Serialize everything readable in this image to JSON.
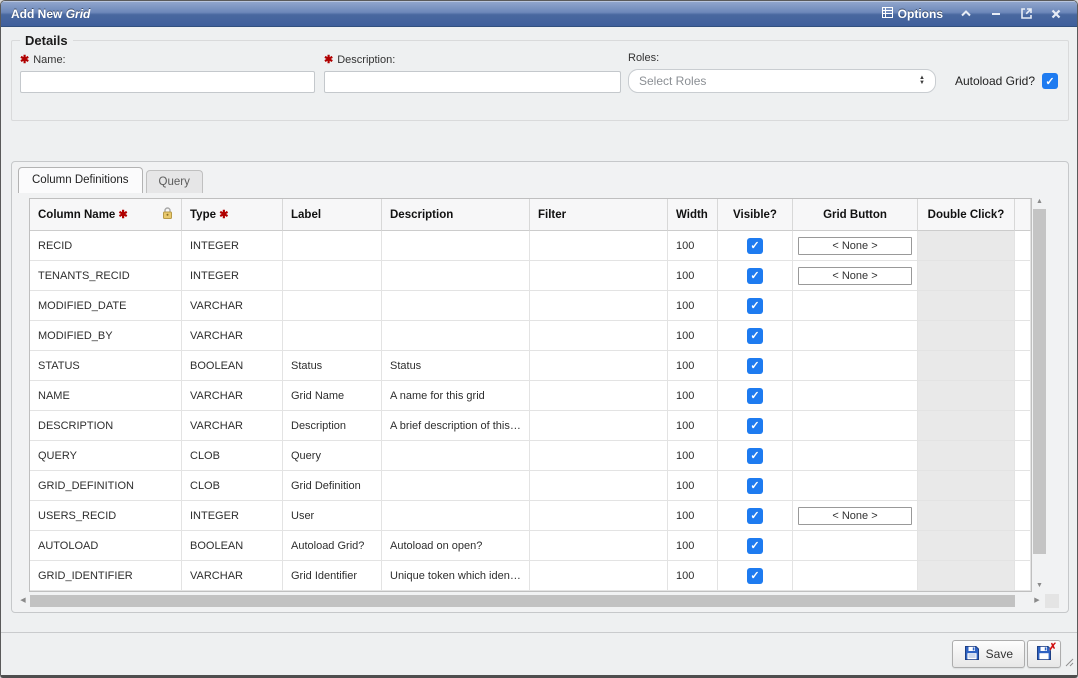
{
  "window": {
    "title_prefix": "Add New",
    "title_emphasis": "Grid",
    "options_label": "Options"
  },
  "details": {
    "legend": "Details",
    "name_label": "Name:",
    "name_value": "",
    "description_label": "Description:",
    "description_value": "",
    "roles_label": "Roles:",
    "roles_selected": "Select Roles",
    "autoload_label": "Autoload Grid?",
    "autoload_checked": true
  },
  "tabs": {
    "column_definitions": "Column Definitions",
    "query": "Query"
  },
  "grid": {
    "required_marker": "✱",
    "headers": [
      "Column Name",
      "Type",
      "Label",
      "Description",
      "Filter",
      "Width",
      "Visible?",
      "Grid Button",
      "Double Click?"
    ],
    "rows": [
      {
        "column_name": "RECID",
        "type": "INTEGER",
        "label": "",
        "description": "",
        "filter": "",
        "width": "100",
        "visible": true,
        "grid_button": "< None >"
      },
      {
        "column_name": "TENANTS_RECID",
        "type": "INTEGER",
        "label": "",
        "description": "",
        "filter": "",
        "width": "100",
        "visible": true,
        "grid_button": "< None >"
      },
      {
        "column_name": "MODIFIED_DATE",
        "type": "VARCHAR",
        "label": "",
        "description": "",
        "filter": "",
        "width": "100",
        "visible": true,
        "grid_button": ""
      },
      {
        "column_name": "MODIFIED_BY",
        "type": "VARCHAR",
        "label": "",
        "description": "",
        "filter": "",
        "width": "100",
        "visible": true,
        "grid_button": ""
      },
      {
        "column_name": "STATUS",
        "type": "BOOLEAN",
        "label": "Status",
        "description": "Status",
        "filter": "",
        "width": "100",
        "visible": true,
        "grid_button": ""
      },
      {
        "column_name": "NAME",
        "type": "VARCHAR",
        "label": "Grid Name",
        "description": "A name for this grid",
        "filter": "",
        "width": "100",
        "visible": true,
        "grid_button": ""
      },
      {
        "column_name": "DESCRIPTION",
        "type": "VARCHAR",
        "label": "Description",
        "description": "A brief description of this g...",
        "filter": "",
        "width": "100",
        "visible": true,
        "grid_button": ""
      },
      {
        "column_name": "QUERY",
        "type": "CLOB",
        "label": "Query",
        "description": "",
        "filter": "",
        "width": "100",
        "visible": true,
        "grid_button": ""
      },
      {
        "column_name": "GRID_DEFINITION",
        "type": "CLOB",
        "label": "Grid Definition",
        "description": "",
        "filter": "",
        "width": "100",
        "visible": true,
        "grid_button": ""
      },
      {
        "column_name": "USERS_RECID",
        "type": "INTEGER",
        "label": "User",
        "description": "",
        "filter": "",
        "width": "100",
        "visible": true,
        "grid_button": "< None >"
      },
      {
        "column_name": "AUTOLOAD",
        "type": "BOOLEAN",
        "label": "Autoload Grid?",
        "description": "Autoload on open?",
        "filter": "",
        "width": "100",
        "visible": true,
        "grid_button": ""
      },
      {
        "column_name": "GRID_IDENTIFIER",
        "type": "VARCHAR",
        "label": "Grid Identifier",
        "description": "Unique token which identifi...",
        "filter": "",
        "width": "100",
        "visible": true,
        "grid_button": ""
      }
    ]
  },
  "footer": {
    "save_label": "Save"
  },
  "icons": {
    "check": "✓",
    "arrow_up": "▲",
    "arrow_down": "▼",
    "arrow_left": "◀",
    "arrow_right": "▶"
  },
  "colors": {
    "titlebar_top": "#93a8ce",
    "titlebar_bottom": "#3f5f9c",
    "checkbox_accent": "#1e7bf0",
    "required_red": "#b00000",
    "disabled_cell": "#e9e9e9"
  }
}
